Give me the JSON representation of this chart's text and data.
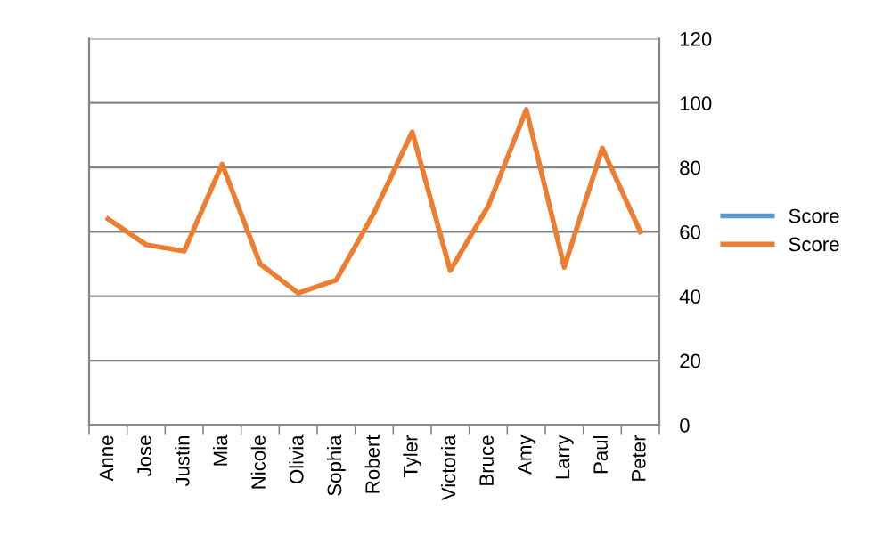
{
  "chart_data": {
    "type": "line",
    "categories": [
      "Anne",
      "Jose",
      "Justin",
      "Mia",
      "Nicole",
      "Olivia",
      "Sophia",
      "Robert",
      "Tyler",
      "Victoria",
      "Bruce",
      "Amy",
      "Larry",
      "Paul",
      "Peter"
    ],
    "series": [
      {
        "name": "Score",
        "color": "#5b9bd5",
        "values": [
          null,
          null,
          null,
          null,
          null,
          null,
          null,
          null,
          null,
          null,
          null,
          null,
          null,
          null,
          null
        ]
      },
      {
        "name": "Score",
        "color": "#ed7d31",
        "values": [
          64,
          56,
          54,
          81,
          50,
          41,
          45,
          66,
          91,
          48,
          68,
          98,
          49,
          86,
          60
        ]
      }
    ],
    "ylim": [
      0,
      120
    ],
    "yticks": [
      0,
      20,
      40,
      60,
      80,
      100,
      120
    ],
    "grid": "y",
    "legend": "right",
    "marker": "none",
    "line_style": "solid"
  }
}
